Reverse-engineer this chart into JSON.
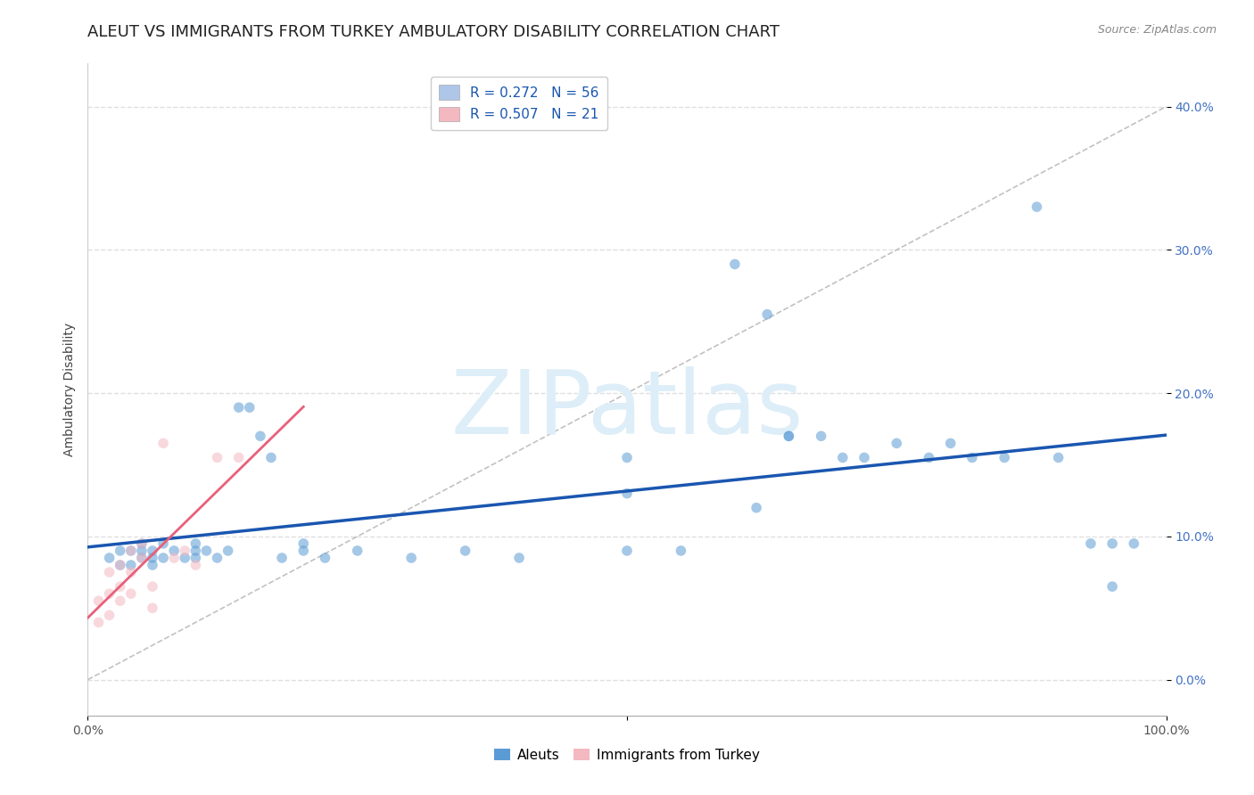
{
  "title": "ALEUT VS IMMIGRANTS FROM TURKEY AMBULATORY DISABILITY CORRELATION CHART",
  "source": "Source: ZipAtlas.com",
  "ylabel": "Ambulatory Disability",
  "xlim": [
    0,
    1.0
  ],
  "ylim": [
    -0.025,
    0.43
  ],
  "xtick_positions": [
    0.0,
    0.5,
    1.0
  ],
  "xtick_labels_show": [
    "0.0%",
    "",
    "100.0%"
  ],
  "yticks": [
    0.0,
    0.1,
    0.2,
    0.3,
    0.4
  ],
  "ytick_labels": [
    "0.0%",
    "10.0%",
    "20.0%",
    "30.0%",
    "40.0%"
  ],
  "legend_top": [
    {
      "R": "0.272",
      "N": "56",
      "patch_color": "#aec6e8"
    },
    {
      "R": "0.507",
      "N": "21",
      "patch_color": "#f4b8c1"
    }
  ],
  "aleut_color": "#5b9bd5",
  "aleut_line_color": "#1a56b0",
  "turkey_color": "#f4b8c1",
  "turkey_line_color": "#e8607a",
  "diagonal_color": "#bbbbbb",
  "grid_color": "#e0e0e0",
  "background_color": "#ffffff",
  "watermark_text": "ZIPatlas",
  "watermark_color": "#ddeef8",
  "title_fontsize": 13,
  "source_fontsize": 9,
  "axis_label_fontsize": 10,
  "tick_fontsize": 10,
  "legend_fontsize": 11,
  "marker_size": 70,
  "marker_alpha": 0.55,
  "aleut_x": [
    0.02,
    0.03,
    0.03,
    0.04,
    0.04,
    0.05,
    0.05,
    0.05,
    0.06,
    0.06,
    0.06,
    0.07,
    0.07,
    0.08,
    0.09,
    0.1,
    0.1,
    0.1,
    0.11,
    0.12,
    0.13,
    0.14,
    0.15,
    0.16,
    0.17,
    0.18,
    0.2,
    0.2,
    0.22,
    0.25,
    0.3,
    0.35,
    0.4,
    0.5,
    0.5,
    0.55,
    0.6,
    0.62,
    0.65,
    0.65,
    0.68,
    0.7,
    0.72,
    0.75,
    0.78,
    0.8,
    0.82,
    0.85,
    0.88,
    0.9,
    0.93,
    0.95,
    0.97,
    0.5,
    0.63,
    0.95
  ],
  "aleut_y": [
    0.085,
    0.08,
    0.09,
    0.08,
    0.09,
    0.085,
    0.09,
    0.095,
    0.08,
    0.085,
    0.09,
    0.085,
    0.095,
    0.09,
    0.085,
    0.09,
    0.085,
    0.095,
    0.09,
    0.085,
    0.09,
    0.19,
    0.19,
    0.17,
    0.155,
    0.085,
    0.09,
    0.095,
    0.085,
    0.09,
    0.085,
    0.09,
    0.085,
    0.13,
    0.09,
    0.09,
    0.29,
    0.12,
    0.17,
    0.17,
    0.17,
    0.155,
    0.155,
    0.165,
    0.155,
    0.165,
    0.155,
    0.155,
    0.33,
    0.155,
    0.095,
    0.065,
    0.095,
    0.155,
    0.255,
    0.095
  ],
  "turkey_x": [
    0.01,
    0.01,
    0.02,
    0.02,
    0.02,
    0.03,
    0.03,
    0.03,
    0.04,
    0.04,
    0.04,
    0.05,
    0.05,
    0.06,
    0.06,
    0.07,
    0.08,
    0.09,
    0.1,
    0.12,
    0.14
  ],
  "turkey_y": [
    0.04,
    0.055,
    0.045,
    0.06,
    0.075,
    0.055,
    0.065,
    0.08,
    0.06,
    0.075,
    0.09,
    0.085,
    0.095,
    0.05,
    0.065,
    0.165,
    0.085,
    0.09,
    0.08,
    0.155,
    0.155
  ]
}
